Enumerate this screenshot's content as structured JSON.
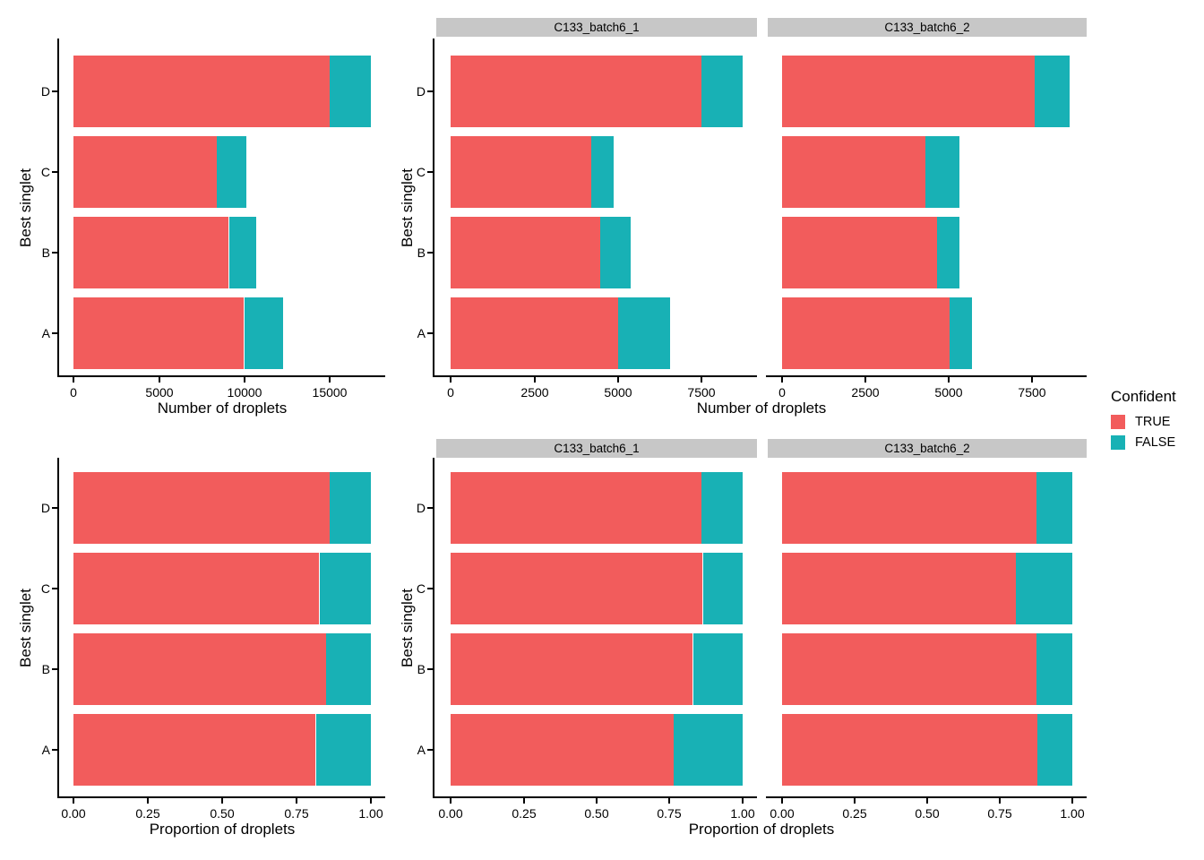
{
  "colors": {
    "true_fill": "#F25C5C",
    "false_fill": "#18B1B5",
    "strip_bg": "#C7C7C7",
    "axis_line": "#000000",
    "text": "#000000",
    "background": "#FFFFFF"
  },
  "legend": {
    "title": "Confident",
    "items": [
      {
        "label": "TRUE",
        "color": "#F25C5C"
      },
      {
        "label": "FALSE",
        "color": "#18B1B5"
      }
    ]
  },
  "chart_data": [
    {
      "id": "droplet-counts-combined",
      "type": "bar",
      "orientation": "horizontal",
      "stacked": true,
      "grid": false,
      "categories": [
        "A",
        "B",
        "C",
        "D"
      ],
      "series": [
        {
          "name": "TRUE",
          "values": [
            10000,
            9100,
            8400,
            15000
          ]
        },
        {
          "name": "FALSE",
          "values": [
            2250,
            1600,
            1750,
            2400
          ]
        }
      ],
      "xlabel": "Number of droplets",
      "ylabel": "Best singlet",
      "xlim": [
        0,
        17400
      ],
      "xmax": 17400,
      "xticks": [
        {
          "v": 0,
          "label": "0"
        },
        {
          "v": 5000,
          "label": "5000"
        },
        {
          "v": 10000,
          "label": "10000"
        },
        {
          "v": 15000,
          "label": "15000"
        }
      ]
    },
    {
      "id": "droplet-counts-by-sample",
      "type": "bar",
      "orientation": "horizontal",
      "stacked": true,
      "grid": false,
      "categories": [
        "A",
        "B",
        "C",
        "D"
      ],
      "facets": [
        {
          "label": "C133_batch6_1",
          "series": [
            {
              "name": "TRUE",
              "values": [
                5000,
                4480,
                4200,
                7500
              ]
            },
            {
              "name": "FALSE",
              "values": [
                1550,
                920,
                660,
                1220
              ]
            }
          ]
        },
        {
          "label": "C133_batch6_2",
          "series": [
            {
              "name": "TRUE",
              "values": [
                5030,
                4650,
                4300,
                7590
              ]
            },
            {
              "name": "FALSE",
              "values": [
                680,
                660,
                1030,
                1060
              ]
            }
          ]
        }
      ],
      "xlabel": "Number of droplets",
      "ylabel": "Best singlet",
      "xlim": [
        0,
        8720
      ],
      "xmax": 8720,
      "xticks": [
        {
          "v": 0,
          "label": "0"
        },
        {
          "v": 2500,
          "label": "2500"
        },
        {
          "v": 5000,
          "label": "5000"
        },
        {
          "v": 7500,
          "label": "7500"
        }
      ]
    },
    {
      "id": "droplet-proportions-combined",
      "type": "bar",
      "orientation": "horizontal",
      "stacked": true,
      "grid": false,
      "categories": [
        "A",
        "B",
        "C",
        "D"
      ],
      "series": [
        {
          "name": "TRUE",
          "values": [
            0.816,
            0.85,
            0.828,
            0.862
          ]
        },
        {
          "name": "FALSE",
          "values": [
            0.184,
            0.15,
            0.172,
            0.138
          ]
        }
      ],
      "xlabel": "Proportion of droplets",
      "ylabel": "Best singlet",
      "xlim": [
        0,
        1
      ],
      "xmax": 1,
      "xticks": [
        {
          "v": 0,
          "label": "0.00"
        },
        {
          "v": 0.25,
          "label": "0.25"
        },
        {
          "v": 0.5,
          "label": "0.50"
        },
        {
          "v": 0.75,
          "label": "0.75"
        },
        {
          "v": 1,
          "label": "1.00"
        }
      ]
    },
    {
      "id": "droplet-proportions-by-sample",
      "type": "bar",
      "orientation": "horizontal",
      "stacked": true,
      "grid": false,
      "categories": [
        "A",
        "B",
        "C",
        "D"
      ],
      "facets": [
        {
          "label": "C133_batch6_1",
          "series": [
            {
              "name": "TRUE",
              "values": [
                0.763,
                0.83,
                0.864,
                0.86
              ]
            },
            {
              "name": "FALSE",
              "values": [
                0.237,
                0.17,
                0.136,
                0.14
              ]
            }
          ]
        },
        {
          "label": "C133_batch6_2",
          "series": [
            {
              "name": "TRUE",
              "values": [
                0.881,
                0.876,
                0.807,
                0.878
              ]
            },
            {
              "name": "FALSE",
              "values": [
                0.119,
                0.124,
                0.193,
                0.122
              ]
            }
          ]
        }
      ],
      "xlabel": "Proportion of droplets",
      "ylabel": "Best singlet",
      "xlim": [
        0,
        1
      ],
      "xmax": 1,
      "xticks": [
        {
          "v": 0,
          "label": "0.00"
        },
        {
          "v": 0.25,
          "label": "0.25"
        },
        {
          "v": 0.5,
          "label": "0.50"
        },
        {
          "v": 0.75,
          "label": "0.75"
        },
        {
          "v": 1,
          "label": "1.00"
        }
      ]
    }
  ]
}
